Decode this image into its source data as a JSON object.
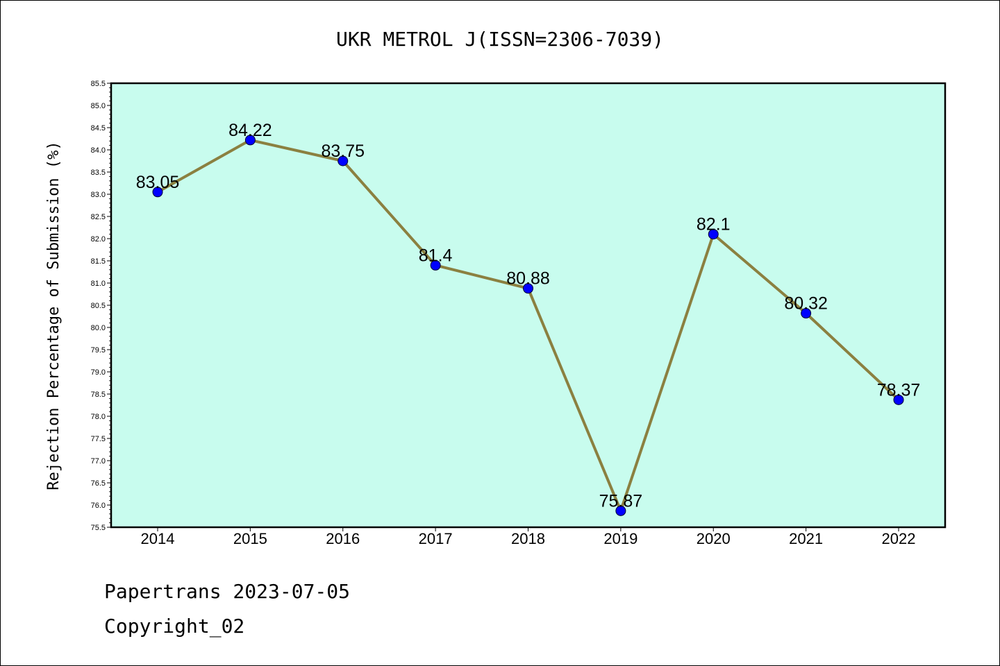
{
  "chart_data": {
    "type": "line",
    "title": "UKR METROL J(ISSN=2306-7039)",
    "xlabel": "",
    "ylabel": "Rejection Percentage of Submission (%)",
    "categories": [
      "2014",
      "2015",
      "2016",
      "2017",
      "2018",
      "2019",
      "2020",
      "2021",
      "2022"
    ],
    "series": [
      {
        "values": [
          83.05,
          84.22,
          83.75,
          81.4,
          80.88,
          75.87,
          82.1,
          80.32,
          78.37
        ],
        "labels": [
          "83.05",
          "84.22",
          "83.75",
          "81.4",
          "80.88",
          "75.87",
          "82.1",
          "80.32",
          "78.37"
        ]
      }
    ],
    "ylim": [
      75.5,
      85.5
    ],
    "yticks": [
      "75.5",
      "76.0",
      "76.5",
      "77.0",
      "77.5",
      "78.0",
      "78.5",
      "79.0",
      "79.5",
      "80.0",
      "80.5",
      "81.0",
      "81.5",
      "82.0",
      "82.5",
      "83.0",
      "83.5",
      "84.0",
      "84.5",
      "85.0",
      "85.5"
    ],
    "grid": false,
    "colors": {
      "plot_background": "#c8fcee",
      "line": "#8b8040",
      "marker": "#0000ff"
    }
  },
  "footer": {
    "source": "Papertrans 2023-07-05",
    "copyright": "Copyright_02"
  }
}
